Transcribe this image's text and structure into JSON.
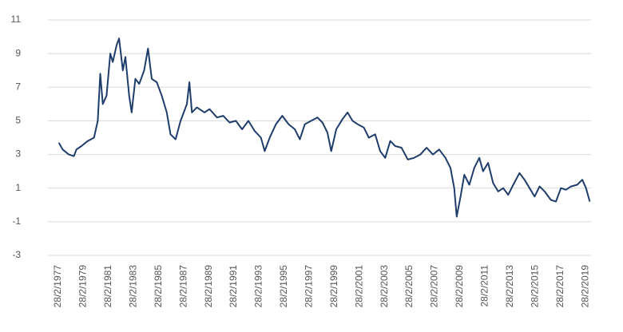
{
  "chart_data": {
    "type": "line",
    "x": [
      1977.2,
      1977.5,
      1978.0,
      1978.4,
      1978.6,
      1979.0,
      1979.5,
      1980.0,
      1980.3,
      1980.5,
      1980.7,
      1981.0,
      1981.3,
      1981.5,
      1981.8,
      1982.0,
      1982.3,
      1982.5,
      1982.8,
      1983.0,
      1983.3,
      1983.6,
      1984.0,
      1984.3,
      1984.6,
      1985.0,
      1985.4,
      1985.8,
      1986.1,
      1986.5,
      1986.9,
      1987.4,
      1987.6,
      1987.8,
      1988.2,
      1988.8,
      1989.2,
      1989.8,
      1990.3,
      1990.8,
      1991.3,
      1991.8,
      1992.3,
      1992.8,
      1993.3,
      1993.6,
      1994.0,
      1994.5,
      1995.0,
      1995.5,
      1996.0,
      1996.4,
      1996.8,
      1997.3,
      1997.8,
      1998.2,
      1998.6,
      1998.9,
      1999.3,
      1999.8,
      2000.2,
      2000.6,
      2001.0,
      2001.5,
      2001.9,
      2002.4,
      2002.8,
      2003.2,
      2003.6,
      2004.0,
      2004.5,
      2005.0,
      2005.5,
      2006.0,
      2006.5,
      2007.0,
      2007.5,
      2008.0,
      2008.4,
      2008.7,
      2008.9,
      2009.2,
      2009.5,
      2009.9,
      2010.3,
      2010.7,
      2011.0,
      2011.4,
      2011.8,
      2012.2,
      2012.6,
      2013.0,
      2013.4,
      2013.9,
      2014.3,
      2014.7,
      2015.1,
      2015.5,
      2015.9,
      2016.4,
      2016.8,
      2017.2,
      2017.6,
      2018.0,
      2018.5,
      2018.9,
      2019.2,
      2019.5
    ],
    "series": [
      {
        "color": "#1f3d6b",
        "values": [
          3.7,
          3.3,
          3.0,
          2.9,
          3.3,
          3.5,
          3.8,
          4.0,
          5.0,
          7.8,
          6.0,
          6.5,
          9.0,
          8.5,
          9.5,
          9.9,
          8.0,
          8.8,
          6.5,
          5.5,
          7.5,
          7.2,
          8.0,
          9.3,
          7.5,
          7.3,
          6.5,
          5.5,
          4.2,
          3.9,
          5.0,
          6.0,
          7.3,
          5.5,
          5.8,
          5.5,
          5.7,
          5.2,
          5.3,
          4.9,
          5.0,
          4.5,
          5.0,
          4.4,
          4.0,
          3.2,
          4.0,
          4.8,
          5.3,
          4.8,
          4.5,
          3.9,
          4.8,
          5.0,
          5.2,
          4.9,
          4.3,
          3.2,
          4.5,
          5.1,
          5.5,
          5.0,
          4.8,
          4.6,
          4.0,
          4.2,
          3.2,
          2.8,
          3.8,
          3.5,
          3.4,
          2.7,
          2.8,
          3.0,
          3.4,
          3.0,
          3.3,
          2.8,
          2.2,
          1.0,
          -0.7,
          0.5,
          1.8,
          1.2,
          2.2,
          2.8,
          2.0,
          2.5,
          1.3,
          0.8,
          1.0,
          0.6,
          1.2,
          1.9,
          1.5,
          1.0,
          0.5,
          1.1,
          0.8,
          0.3,
          0.2,
          1.0,
          0.9,
          1.1,
          1.2,
          1.5,
          1.0,
          0.2
        ]
      }
    ],
    "xlim": [
      1976.33,
      2019.6
    ],
    "xticks": [
      {
        "value": 1977.16,
        "label": "28/2/1977"
      },
      {
        "value": 1979.16,
        "label": "28/2/1979"
      },
      {
        "value": 1981.16,
        "label": "28/2/1981"
      },
      {
        "value": 1983.16,
        "label": "28/2/1983"
      },
      {
        "value": 1985.16,
        "label": "28/2/1985"
      },
      {
        "value": 1987.16,
        "label": "28/2/1987"
      },
      {
        "value": 1989.16,
        "label": "28/2/1989"
      },
      {
        "value": 1991.16,
        "label": "28/2/1991"
      },
      {
        "value": 1993.16,
        "label": "28/2/1993"
      },
      {
        "value": 1995.16,
        "label": "28/2/1995"
      },
      {
        "value": 1997.16,
        "label": "28/2/1997"
      },
      {
        "value": 1999.16,
        "label": "28/2/1999"
      },
      {
        "value": 2001.16,
        "label": "28/2/2001"
      },
      {
        "value": 2003.16,
        "label": "28/2/2003"
      },
      {
        "value": 2005.16,
        "label": "28/2/2005"
      },
      {
        "value": 2007.16,
        "label": "28/2/2007"
      },
      {
        "value": 2009.16,
        "label": "28/2/2009"
      },
      {
        "value": 2011.16,
        "label": "28/2/2011"
      },
      {
        "value": 2013.16,
        "label": "28/2/2013"
      },
      {
        "value": 2015.16,
        "label": "28/2/2015"
      },
      {
        "value": 2017.16,
        "label": "28/2/2017"
      },
      {
        "value": 2019.16,
        "label": "28/2/2019"
      }
    ],
    "ylim": [
      -3,
      11
    ],
    "yticks": [
      -3,
      -1,
      1,
      3,
      5,
      7,
      9,
      11
    ],
    "grid": true
  }
}
